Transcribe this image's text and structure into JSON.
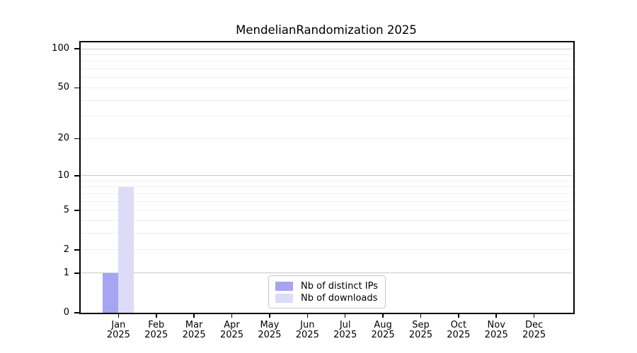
{
  "chart_data": {
    "type": "bar",
    "title": "MendelianRandomization 2025",
    "categories": [
      "Jan",
      "Feb",
      "Mar",
      "Apr",
      "May",
      "Jun",
      "Jul",
      "Aug",
      "Sep",
      "Oct",
      "Nov",
      "Dec"
    ],
    "category_sublabel": "2025",
    "series": [
      {
        "name": "Nb of distinct IPs",
        "color": "#a5a5f2",
        "values": [
          1,
          0,
          0,
          0,
          0,
          0,
          0,
          0,
          0,
          0,
          0,
          0
        ]
      },
      {
        "name": "Nb of downloads",
        "color": "#dcdcf8",
        "values": [
          8,
          0,
          0,
          0,
          0,
          0,
          0,
          0,
          0,
          0,
          0,
          0
        ]
      }
    ],
    "xlabel": "",
    "ylabel": "",
    "yscale": "log1p",
    "ylim": [
      0,
      112
    ],
    "y_ticks": [
      0,
      1,
      2,
      5,
      10,
      20,
      50,
      100
    ],
    "grid": {
      "major_lines": [
        1,
        10,
        100
      ],
      "minor_lines": [
        2,
        3,
        4,
        5,
        6,
        7,
        8,
        9,
        20,
        30,
        40,
        50,
        60,
        70,
        80,
        90
      ],
      "major_color": "#c8c8c8",
      "minor_color": "#efefef"
    },
    "axis_color": "#000000",
    "legend_position": "bottom-center"
  }
}
